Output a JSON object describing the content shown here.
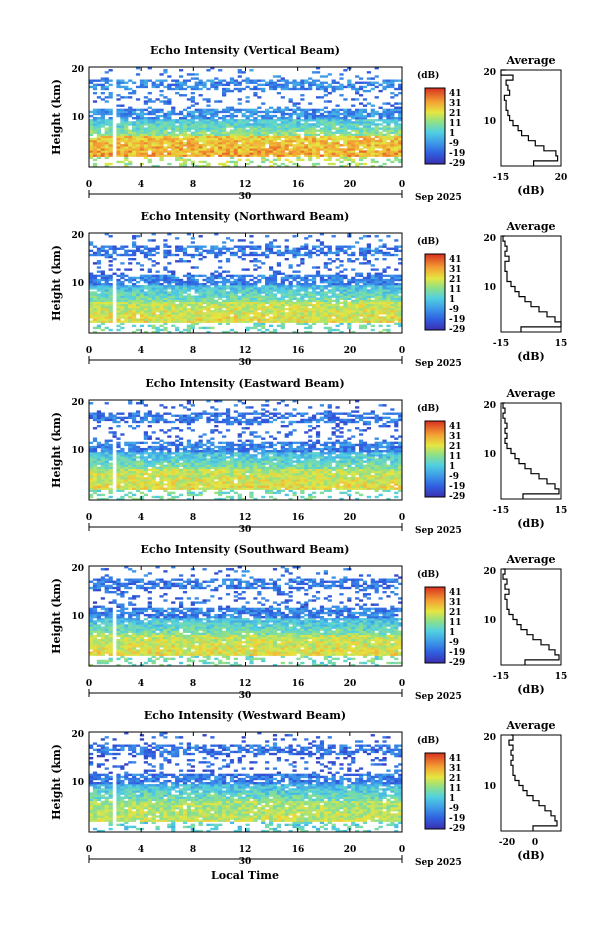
{
  "chart_data": [
    {
      "type": "heatmap",
      "title": "Echo Intensity (Vertical Beam)",
      "ylabel": "Height (km)",
      "x_ticks": [
        "0",
        "4",
        "8",
        "12",
        "16",
        "20",
        "0"
      ],
      "day_label": "30",
      "date_label": "Sep 2025",
      "xlim": [
        0,
        24
      ],
      "ylim": [
        1,
        20
      ],
      "y_ticks": [
        "10",
        "20"
      ],
      "colorbar": {
        "label": "(dB)",
        "ticks": [
          "41",
          "31",
          "21",
          "11",
          "1",
          "-9",
          "-19",
          "-29"
        ]
      },
      "profile": {
        "title": "Average",
        "xlabel": "(dB)",
        "x_ticks": [
          "-15",
          "20"
        ],
        "xlim": [
          -15,
          20
        ],
        "y_ticks": [
          "10",
          "20"
        ],
        "heights": [
          1,
          2,
          3,
          4,
          5,
          6,
          7,
          8,
          9,
          10,
          11,
          12,
          13,
          14,
          15,
          16,
          17,
          18,
          19,
          20
        ],
        "values": [
          4,
          18,
          17,
          10,
          5,
          1,
          -3,
          -5,
          -8,
          -10,
          -11,
          -12,
          -12,
          -13,
          -10,
          -11,
          -12,
          -8,
          -15,
          -12
        ]
      }
    },
    {
      "type": "heatmap",
      "title": "Echo Intensity (Northward Beam)",
      "ylabel": "Height (km)",
      "x_ticks": [
        "0",
        "4",
        "8",
        "12",
        "16",
        "20",
        "0"
      ],
      "day_label": "30",
      "date_label": "Sep 2025",
      "xlim": [
        0,
        24
      ],
      "ylim": [
        1,
        20
      ],
      "y_ticks": [
        "10",
        "20"
      ],
      "colorbar": {
        "label": "(dB)",
        "ticks": [
          "41",
          "31",
          "21",
          "11",
          "1",
          "-9",
          "-19",
          "-29"
        ]
      },
      "profile": {
        "title": "Average",
        "xlabel": "(dB)",
        "x_ticks": [
          "-15",
          "15"
        ],
        "xlim": [
          -15,
          15
        ],
        "y_ticks": [
          "10",
          "20"
        ],
        "heights": [
          1,
          2,
          3,
          4,
          5,
          6,
          7,
          8,
          9,
          10,
          11,
          12,
          13,
          14,
          15,
          16,
          17,
          18,
          19,
          20
        ],
        "values": [
          -5,
          15,
          12,
          8,
          4,
          0,
          -3,
          -6,
          -8,
          -10,
          -12,
          -12,
          -13,
          -13,
          -11,
          -13,
          -12,
          -13,
          -14,
          -13
        ]
      }
    },
    {
      "type": "heatmap",
      "title": "Echo Intensity (Eastward Beam)",
      "ylabel": "Height (km)",
      "x_ticks": [
        "0",
        "4",
        "8",
        "12",
        "16",
        "20",
        "0"
      ],
      "day_label": "30",
      "date_label": "Sep 2025",
      "xlim": [
        0,
        24
      ],
      "ylim": [
        1,
        20
      ],
      "y_ticks": [
        "10",
        "20"
      ],
      "colorbar": {
        "label": "(dB)",
        "ticks": [
          "41",
          "31",
          "21",
          "11",
          "1",
          "-9",
          "-19",
          "-29"
        ]
      },
      "profile": {
        "title": "Average",
        "xlabel": "(dB)",
        "x_ticks": [
          "-15",
          "15"
        ],
        "xlim": [
          -15,
          15
        ],
        "y_ticks": [
          "10",
          "20"
        ],
        "heights": [
          1,
          2,
          3,
          4,
          5,
          6,
          7,
          8,
          9,
          10,
          11,
          12,
          13,
          14,
          15,
          16,
          17,
          18,
          19,
          20
        ],
        "values": [
          -4,
          14,
          12,
          8,
          4,
          0,
          -3,
          -6,
          -8,
          -10,
          -12,
          -13,
          -12,
          -13,
          -12,
          -13,
          -14,
          -13,
          -14,
          -13
        ]
      }
    },
    {
      "type": "heatmap",
      "title": "Echo Intensity (Southward Beam)",
      "ylabel": "Height (km)",
      "x_ticks": [
        "0",
        "4",
        "8",
        "12",
        "16",
        "20",
        "0"
      ],
      "day_label": "30",
      "date_label": "Sep 2025",
      "xlim": [
        0,
        24
      ],
      "ylim": [
        1,
        20
      ],
      "y_ticks": [
        "10",
        "20"
      ],
      "colorbar": {
        "label": "(dB)",
        "ticks": [
          "41",
          "31",
          "21",
          "11",
          "1",
          "-9",
          "-19",
          "-29"
        ]
      },
      "profile": {
        "title": "Average",
        "xlabel": "(dB)",
        "x_ticks": [
          "-15",
          "15"
        ],
        "xlim": [
          -15,
          15
        ],
        "y_ticks": [
          "10",
          "20"
        ],
        "heights": [
          1,
          2,
          3,
          4,
          5,
          6,
          7,
          8,
          9,
          10,
          11,
          12,
          13,
          14,
          15,
          16,
          17,
          18,
          19,
          20
        ],
        "values": [
          -3,
          14,
          12,
          9,
          5,
          1,
          -2,
          -5,
          -7,
          -9,
          -11,
          -12,
          -12,
          -13,
          -11,
          -13,
          -12,
          -14,
          -13,
          -14
        ]
      }
    },
    {
      "type": "heatmap",
      "title": "Echo Intensity (Westward Beam)",
      "ylabel": "Height (km)",
      "x_ticks": [
        "0",
        "4",
        "8",
        "12",
        "16",
        "20",
        "0"
      ],
      "day_label": "30",
      "date_label": "Sep 2025",
      "xlabel": "Local Time",
      "xlim": [
        0,
        24
      ],
      "ylim": [
        1,
        20
      ],
      "y_ticks": [
        "10",
        "20"
      ],
      "colorbar": {
        "label": "(dB)",
        "ticks": [
          "41",
          "31",
          "21",
          "11",
          "1",
          "-9",
          "-19",
          "-29"
        ]
      },
      "profile": {
        "title": "Average",
        "xlabel": "(dB)",
        "x_ticks": [
          "-20",
          "0"
        ],
        "xlim": [
          -22,
          8
        ],
        "y_ticks": [
          "10",
          "20"
        ],
        "heights": [
          1,
          2,
          3,
          4,
          5,
          6,
          7,
          8,
          9,
          10,
          11,
          12,
          13,
          14,
          15,
          16,
          17,
          18,
          19,
          20
        ],
        "values": [
          -6,
          6,
          5,
          3,
          0,
          -3,
          -6,
          -9,
          -11,
          -13,
          -15,
          -16,
          -16,
          -17,
          -16,
          -17,
          -16,
          -18,
          -16,
          -17
        ]
      }
    }
  ]
}
